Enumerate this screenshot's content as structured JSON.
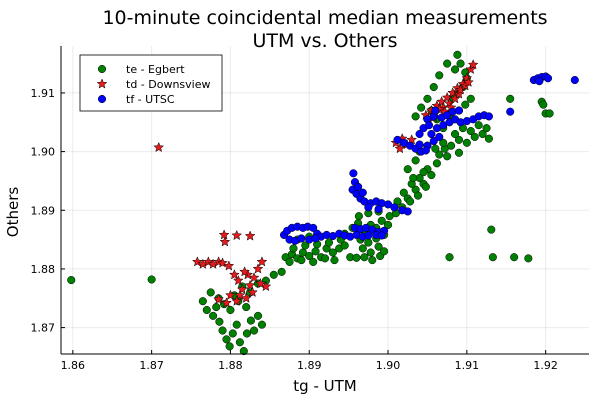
{
  "chart_data": {
    "type": "scatter",
    "title": "10-minute coincidental median measurements",
    "subtitle": "UTM vs. Others",
    "xlabel": "tg - UTM",
    "ylabel": "Others",
    "xlim": [
      1.8585,
      1.9255
    ],
    "ylim": [
      1.8655,
      1.918
    ],
    "xticks": [
      1.86,
      1.87,
      1.88,
      1.89,
      1.9,
      1.91,
      1.92
    ],
    "xtick_labels": [
      "1.86",
      "1.87",
      "1.88",
      "1.89",
      "1.90",
      "1.91",
      "1.92"
    ],
    "yticks": [
      1.87,
      1.88,
      1.89,
      1.9,
      1.91
    ],
    "ytick_labels": [
      "1.87",
      "1.88",
      "1.89",
      "1.90",
      "1.91"
    ],
    "grid": true,
    "legend_position": "top-left",
    "series": [
      {
        "name": "te - Egbert",
        "marker": "circle",
        "color": "#008000",
        "points": [
          [
            1.8598,
            1.8781
          ],
          [
            1.87,
            1.8782
          ],
          [
            1.8765,
            1.8745
          ],
          [
            1.877,
            1.873
          ],
          [
            1.8778,
            1.872
          ],
          [
            1.8782,
            1.8735
          ],
          [
            1.8786,
            1.871
          ],
          [
            1.879,
            1.8695
          ],
          [
            1.8795,
            1.868
          ],
          [
            1.8799,
            1.8668
          ],
          [
            1.8803,
            1.869
          ],
          [
            1.8808,
            1.8705
          ],
          [
            1.8812,
            1.8675
          ],
          [
            1.8817,
            1.866
          ],
          [
            1.8821,
            1.869
          ],
          [
            1.8826,
            1.8712
          ],
          [
            1.883,
            1.8695
          ],
          [
            1.8835,
            1.872
          ],
          [
            1.884,
            1.8705
          ],
          [
            1.8792,
            1.874
          ],
          [
            1.8805,
            1.8755
          ],
          [
            1.8815,
            1.877
          ],
          [
            1.8825,
            1.876
          ],
          [
            1.8835,
            1.8775
          ],
          [
            1.8845,
            1.878
          ],
          [
            1.8855,
            1.879
          ],
          [
            1.8865,
            1.8795
          ],
          [
            1.88,
            1.873
          ],
          [
            1.881,
            1.8745
          ],
          [
            1.882,
            1.8735
          ],
          [
            1.8785,
            1.875
          ],
          [
            1.8775,
            1.876
          ],
          [
            1.887,
            1.882
          ],
          [
            1.8878,
            1.8825
          ],
          [
            1.8885,
            1.8818
          ],
          [
            1.8892,
            1.8828
          ],
          [
            1.89,
            1.8822
          ],
          [
            1.8908,
            1.883
          ],
          [
            1.8915,
            1.882
          ],
          [
            1.8922,
            1.8835
          ],
          [
            1.893,
            1.8828
          ],
          [
            1.888,
            1.8835
          ],
          [
            1.8895,
            1.884
          ],
          [
            1.891,
            1.8842
          ],
          [
            1.8925,
            1.8845
          ],
          [
            1.8875,
            1.8812
          ],
          [
            1.889,
            1.8815
          ],
          [
            1.8905,
            1.8812
          ],
          [
            1.892,
            1.8818
          ],
          [
            1.8938,
            1.8835
          ],
          [
            1.8945,
            1.884
          ],
          [
            1.8885,
            1.885
          ],
          [
            1.89,
            1.8855
          ],
          [
            1.894,
            1.885
          ],
          [
            1.8932,
            1.8815
          ],
          [
            1.8952,
            1.882
          ],
          [
            1.896,
            1.8819
          ],
          [
            1.8945,
            1.886
          ],
          [
            1.8955,
            1.887
          ],
          [
            1.8962,
            1.8878
          ],
          [
            1.897,
            1.8865
          ],
          [
            1.8978,
            1.8875
          ],
          [
            1.8985,
            1.887
          ],
          [
            1.8992,
            1.8882
          ],
          [
            1.9,
            1.8875
          ],
          [
            1.8965,
            1.885
          ],
          [
            1.8975,
            1.8845
          ],
          [
            1.8985,
            1.8852
          ],
          [
            1.8995,
            1.8858
          ],
          [
            1.8968,
            1.8835
          ],
          [
            1.8978,
            1.8828
          ],
          [
            1.8988,
            1.8838
          ],
          [
            1.897,
            1.882
          ],
          [
            1.898,
            1.8815
          ],
          [
            1.899,
            1.8822
          ],
          [
            1.8995,
            1.883
          ],
          [
            1.8963,
            1.889
          ],
          [
            1.8975,
            1.8895
          ],
          [
            1.8988,
            1.8898
          ],
          [
            1.9002,
            1.889
          ],
          [
            1.901,
            1.8895
          ],
          [
            1.9018,
            1.8905
          ],
          [
            1.9025,
            1.892
          ],
          [
            1.9035,
            1.8935
          ],
          [
            1.9045,
            1.8945
          ],
          [
            1.9055,
            1.896
          ],
          [
            1.902,
            1.893
          ],
          [
            1.903,
            1.8945
          ],
          [
            1.904,
            1.8955
          ],
          [
            1.905,
            1.897
          ],
          [
            1.9062,
            1.898
          ],
          [
            1.9028,
            1.8915
          ],
          [
            1.9038,
            1.8925
          ],
          [
            1.9048,
            1.894
          ],
          [
            1.9012,
            1.8915
          ],
          [
            1.9065,
            1.8995
          ],
          [
            1.9072,
            1.9005
          ],
          [
            1.906,
            1.9005
          ],
          [
            1.907,
            1.9015
          ],
          [
            1.908,
            1.901
          ],
          [
            1.909,
            1.902
          ],
          [
            1.91,
            1.9015
          ],
          [
            1.911,
            1.9025
          ],
          [
            1.912,
            1.903
          ],
          [
            1.9128,
            1.9022
          ],
          [
            1.9085,
            1.903
          ],
          [
            1.9095,
            1.904
          ],
          [
            1.9105,
            1.9035
          ],
          [
            1.9115,
            1.9045
          ],
          [
            1.9125,
            1.904
          ],
          [
            1.9075,
            1.8992
          ],
          [
            1.909,
            1.8998
          ],
          [
            1.907,
            1.904
          ],
          [
            1.908,
            1.9055
          ],
          [
            1.909,
            1.907
          ],
          [
            1.9098,
            1.908
          ],
          [
            1.9105,
            1.909
          ],
          [
            1.908,
            1.909
          ],
          [
            1.9088,
            1.91
          ],
          [
            1.9095,
            1.911
          ],
          [
            1.91,
            1.9125
          ],
          [
            1.9085,
            1.914
          ],
          [
            1.9092,
            1.915
          ],
          [
            1.9098,
            1.9135
          ],
          [
            1.9088,
            1.9165
          ],
          [
            1.9075,
            1.915
          ],
          [
            1.9065,
            1.913
          ],
          [
            1.9058,
            1.911
          ],
          [
            1.905,
            1.909
          ],
          [
            1.9042,
            1.9075
          ],
          [
            1.9035,
            1.906
          ],
          [
            1.9055,
            1.907
          ],
          [
            1.9062,
            1.9055
          ],
          [
            1.904,
            1.9
          ],
          [
            1.905,
            1.901
          ],
          [
            1.9035,
            1.8985
          ],
          [
            1.9045,
            1.8965
          ],
          [
            1.9032,
            1.8955
          ],
          [
            1.9025,
            1.897
          ],
          [
            1.9131,
            1.8867
          ],
          [
            1.9133,
            1.882
          ],
          [
            1.916,
            1.882
          ],
          [
            1.9178,
            1.8818
          ],
          [
            1.9078,
            1.882
          ],
          [
            1.9155,
            1.909
          ],
          [
            1.9195,
            1.9085
          ],
          [
            1.92,
            1.9065
          ],
          [
            1.9205,
            1.9065
          ],
          [
            1.9197,
            1.908
          ]
        ]
      },
      {
        "name": "td - Downsview",
        "marker": "star",
        "color": "#e41a1c",
        "points": [
          [
            1.8709,
            1.9007
          ],
          [
            1.8758,
            1.8812
          ],
          [
            1.8765,
            1.8808
          ],
          [
            1.8772,
            1.8812
          ],
          [
            1.8778,
            1.8808
          ],
          [
            1.8785,
            1.8812
          ],
          [
            1.8792,
            1.8858
          ],
          [
            1.8793,
            1.8846
          ],
          [
            1.8808,
            1.8857
          ],
          [
            1.8825,
            1.8856
          ],
          [
            1.879,
            1.881
          ],
          [
            1.8798,
            1.8805
          ],
          [
            1.8805,
            1.879
          ],
          [
            1.881,
            1.878
          ],
          [
            1.8815,
            1.8765
          ],
          [
            1.882,
            1.875
          ],
          [
            1.8825,
            1.8772
          ],
          [
            1.883,
            1.8785
          ],
          [
            1.8835,
            1.88
          ],
          [
            1.884,
            1.8812
          ],
          [
            1.8812,
            1.8755
          ],
          [
            1.8808,
            1.8745
          ],
          [
            1.88,
            1.8755
          ],
          [
            1.8795,
            1.8742
          ],
          [
            1.8785,
            1.8748
          ],
          [
            1.8822,
            1.879
          ],
          [
            1.8818,
            1.8795
          ],
          [
            1.8845,
            1.877
          ],
          [
            1.8838,
            1.8775
          ],
          [
            1.8828,
            1.876
          ],
          [
            1.901,
            1.9015
          ],
          [
            1.9018,
            1.9022
          ],
          [
            1.9024,
            1.9012
          ],
          [
            1.903,
            1.902
          ],
          [
            1.9015,
            1.9005
          ],
          [
            1.9048,
            1.9062
          ],
          [
            1.9055,
            1.907
          ],
          [
            1.9062,
            1.9078
          ],
          [
            1.9068,
            1.9085
          ],
          [
            1.9075,
            1.9092
          ],
          [
            1.9082,
            1.91
          ],
          [
            1.9088,
            1.9108
          ],
          [
            1.9095,
            1.9115
          ],
          [
            1.91,
            1.9125
          ],
          [
            1.9105,
            1.914
          ],
          [
            1.9108,
            1.9148
          ],
          [
            1.907,
            1.9075
          ],
          [
            1.9078,
            1.9082
          ],
          [
            1.9085,
            1.909
          ],
          [
            1.909,
            1.9098
          ],
          [
            1.906,
            1.9065
          ],
          [
            1.9065,
            1.9072
          ],
          [
            1.9072,
            1.9068
          ],
          [
            1.908,
            1.9075
          ],
          [
            1.9058,
            1.9058
          ],
          [
            1.9092,
            1.9105
          ],
          [
            1.9098,
            1.9112
          ],
          [
            1.9102,
            1.9118
          ]
        ]
      },
      {
        "name": "tf - UTSC",
        "marker": "circle",
        "color": "#0000ff",
        "points": [
          [
            1.8868,
            1.8858
          ],
          [
            1.8872,
            1.8865
          ],
          [
            1.8878,
            1.887
          ],
          [
            1.8885,
            1.8872
          ],
          [
            1.8892,
            1.887
          ],
          [
            1.8898,
            1.8872
          ],
          [
            1.8905,
            1.887
          ],
          [
            1.891,
            1.886
          ],
          [
            1.8915,
            1.8855
          ],
          [
            1.8922,
            1.8858
          ],
          [
            1.893,
            1.8856
          ],
          [
            1.8938,
            1.886
          ],
          [
            1.8945,
            1.8857
          ],
          [
            1.8952,
            1.8855
          ],
          [
            1.8875,
            1.885
          ],
          [
            1.8882,
            1.8848
          ],
          [
            1.889,
            1.8852
          ],
          [
            1.89,
            1.885
          ],
          [
            1.8908,
            1.8852
          ],
          [
            1.8958,
            1.887
          ],
          [
            1.8965,
            1.8868
          ],
          [
            1.8972,
            1.887
          ],
          [
            1.898,
            1.8867
          ],
          [
            1.8988,
            1.8863
          ],
          [
            1.8995,
            1.8865
          ],
          [
            1.896,
            1.8858
          ],
          [
            1.8968,
            1.8855
          ],
          [
            1.8975,
            1.8857
          ],
          [
            1.8985,
            1.8858
          ],
          [
            1.8992,
            1.8857
          ],
          [
            1.8955,
            1.8935
          ],
          [
            1.896,
            1.8928
          ],
          [
            1.8965,
            1.892
          ],
          [
            1.897,
            1.8915
          ],
          [
            1.8978,
            1.8912
          ],
          [
            1.8985,
            1.8915
          ],
          [
            1.8992,
            1.8912
          ],
          [
            1.9,
            1.891
          ],
          [
            1.9008,
            1.8905
          ],
          [
            1.9018,
            1.89
          ],
          [
            1.9025,
            1.8898
          ],
          [
            1.8958,
            1.8948
          ],
          [
            1.8962,
            1.894
          ],
          [
            1.8975,
            1.8905
          ],
          [
            1.8988,
            1.8902
          ],
          [
            1.8956,
            1.8963
          ],
          [
            1.8968,
            1.893
          ],
          [
            1.9012,
            1.902
          ],
          [
            1.902,
            1.9015
          ],
          [
            1.9028,
            1.901
          ],
          [
            1.9035,
            1.9005
          ],
          [
            1.9042,
            1.9
          ],
          [
            1.905,
            1.901
          ],
          [
            1.9058,
            1.9018
          ],
          [
            1.9065,
            1.9025
          ],
          [
            1.9048,
            1.9002
          ],
          [
            1.904,
            1.9012
          ],
          [
            1.9055,
            1.903
          ],
          [
            1.9062,
            1.904
          ],
          [
            1.907,
            1.9045
          ],
          [
            1.9078,
            1.905
          ],
          [
            1.9085,
            1.9055
          ],
          [
            1.9092,
            1.905
          ],
          [
            1.91,
            1.9052
          ],
          [
            1.9108,
            1.9055
          ],
          [
            1.9115,
            1.906
          ],
          [
            1.9122,
            1.9062
          ],
          [
            1.9128,
            1.906
          ],
          [
            1.9068,
            1.9058
          ],
          [
            1.9075,
            1.9062
          ],
          [
            1.9082,
            1.9068
          ],
          [
            1.909,
            1.907
          ],
          [
            1.905,
            1.9055
          ],
          [
            1.9058,
            1.906
          ],
          [
            1.9045,
            1.904
          ],
          [
            1.9052,
            1.9045
          ],
          [
            1.904,
            1.903
          ],
          [
            1.906,
            1.907
          ],
          [
            1.9155,
            1.9068
          ],
          [
            1.9185,
            1.9122
          ],
          [
            1.919,
            1.9125
          ],
          [
            1.9195,
            1.9127
          ],
          [
            1.92,
            1.9128
          ],
          [
            1.9203,
            1.9125
          ],
          [
            1.9237,
            1.9122
          ],
          [
            1.9192,
            1.912
          ]
        ]
      }
    ]
  }
}
